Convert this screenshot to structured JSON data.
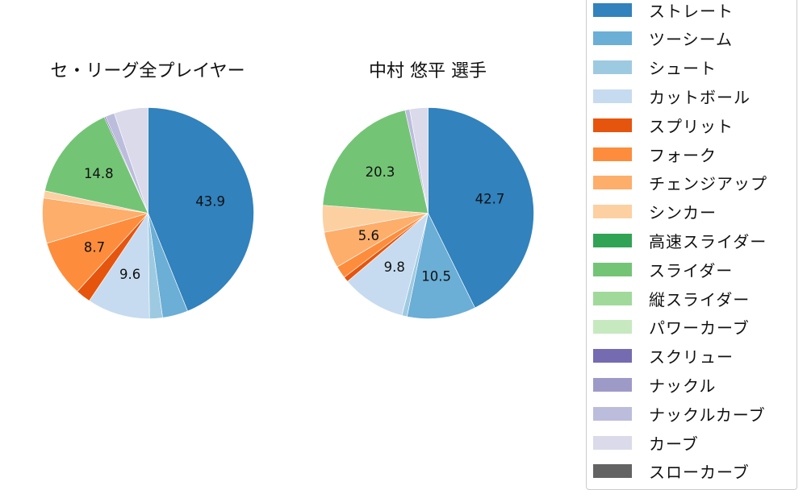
{
  "chart_data": [
    {
      "type": "pie",
      "title": "セ・リーグ全プレイヤー",
      "start_angle": 90,
      "direction": "clockwise",
      "labels_shown_threshold": 5,
      "slices": [
        {
          "name": "ストレート",
          "value": 43.9,
          "label": "43.9"
        },
        {
          "name": "ツーシーム",
          "value": 3.9,
          "label": ""
        },
        {
          "name": "シュート",
          "value": 2.0,
          "label": ""
        },
        {
          "name": "カットボール",
          "value": 9.6,
          "label": "9.6"
        },
        {
          "name": "スプリット",
          "value": 2.3,
          "label": ""
        },
        {
          "name": "フォーク",
          "value": 8.7,
          "label": "8.7"
        },
        {
          "name": "チェンジアップ",
          "value": 6.9,
          "label": ""
        },
        {
          "name": "シンカー",
          "value": 1.1,
          "label": ""
        },
        {
          "name": "スライダー",
          "value": 14.8,
          "label": "14.8"
        },
        {
          "name": "スクリュー",
          "value": 0.2,
          "label": ""
        },
        {
          "name": "ナックルカーブ",
          "value": 1.4,
          "label": ""
        },
        {
          "name": "カーブ",
          "value": 5.2,
          "label": ""
        }
      ]
    },
    {
      "type": "pie",
      "title": "中村 悠平  選手",
      "start_angle": 90,
      "direction": "clockwise",
      "labels_shown_threshold": 5,
      "slices": [
        {
          "name": "ストレート",
          "value": 42.7,
          "label": "42.7"
        },
        {
          "name": "ツーシーム",
          "value": 10.5,
          "label": "10.5"
        },
        {
          "name": "シュート",
          "value": 0.8,
          "label": ""
        },
        {
          "name": "カットボール",
          "value": 9.8,
          "label": "9.8"
        },
        {
          "name": "スプリット",
          "value": 0.8,
          "label": ""
        },
        {
          "name": "フォーク",
          "value": 1.9,
          "label": ""
        },
        {
          "name": "チェンジアップ",
          "value": 5.6,
          "label": "5.6"
        },
        {
          "name": "シンカー",
          "value": 4.1,
          "label": ""
        },
        {
          "name": "スライダー",
          "value": 20.3,
          "label": "20.3"
        },
        {
          "name": "ナックルカーブ",
          "value": 0.7,
          "label": ""
        },
        {
          "name": "カーブ",
          "value": 2.8,
          "label": ""
        }
      ]
    }
  ],
  "legend": {
    "position": "right",
    "items": [
      {
        "name": "ストレート",
        "color": "#3182bd"
      },
      {
        "name": "ツーシーム",
        "color": "#6baed6"
      },
      {
        "name": "シュート",
        "color": "#9ecae1"
      },
      {
        "name": "カットボール",
        "color": "#c6dbef"
      },
      {
        "name": "スプリット",
        "color": "#e6550d"
      },
      {
        "name": "フォーク",
        "color": "#fd8d3c"
      },
      {
        "name": "チェンジアップ",
        "color": "#fdae6b"
      },
      {
        "name": "シンカー",
        "color": "#fdd0a2"
      },
      {
        "name": "高速スライダー",
        "color": "#31a354"
      },
      {
        "name": "スライダー",
        "color": "#74c476"
      },
      {
        "name": "縦スライダー",
        "color": "#a1d99b"
      },
      {
        "name": "パワーカーブ",
        "color": "#c7e9c0"
      },
      {
        "name": "スクリュー",
        "color": "#756bb1"
      },
      {
        "name": "ナックル",
        "color": "#9e9ac8"
      },
      {
        "name": "ナックルカーブ",
        "color": "#bcbddc"
      },
      {
        "name": "カーブ",
        "color": "#dadaeb"
      },
      {
        "name": "スローカーブ",
        "color": "#636363"
      }
    ]
  }
}
